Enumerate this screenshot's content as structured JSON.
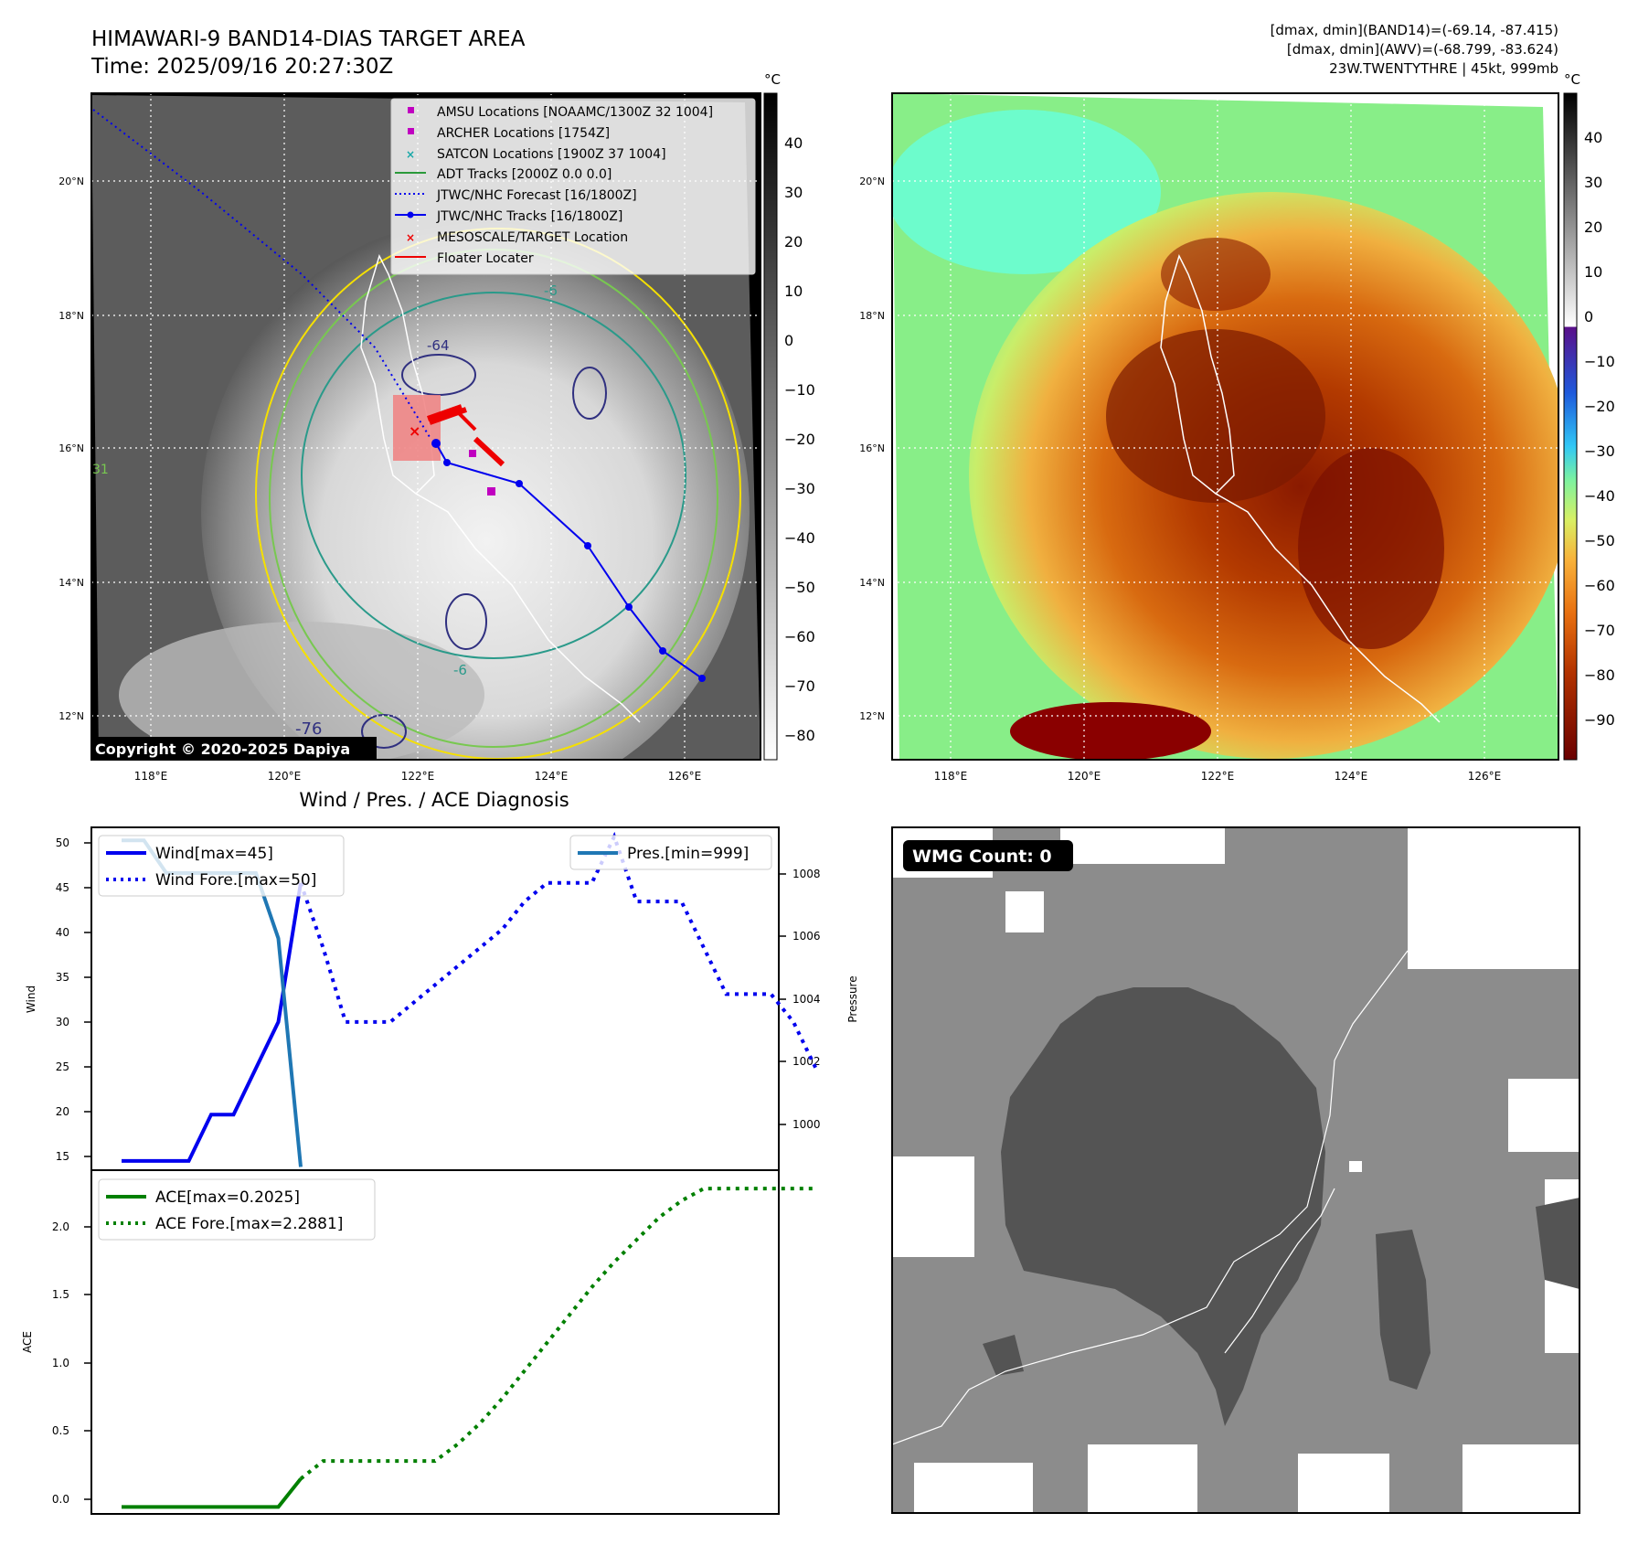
{
  "header": {
    "title_line1": "HIMAWARI-9 BAND14-DIAS TARGET AREA",
    "title_line2": "Time: 2025/09/16 20:27:30Z",
    "info_line1": "[dmax, dmin](BAND14)=(-69.14, -87.415)",
    "info_line2": "[dmax, dmin](AWV)=(-68.799, -83.624)",
    "info_line3": "23W.TWENTYTHRE | 45kt, 999mb"
  },
  "map": {
    "lon_ticks": [
      "118°E",
      "120°E",
      "122°E",
      "124°E",
      "126°E"
    ],
    "lat_ticks": [
      "20°N",
      "18°N",
      "16°N",
      "14°N",
      "12°N"
    ],
    "copyright": "Copyright © 2020-2025 Dapiya",
    "contour_labels": [
      "-6",
      "-64",
      "-6",
      "-76",
      "31"
    ],
    "legend": [
      {
        "label": "AMSU Locations [NOAAMC/1300Z 32 1004]",
        "marker": "square",
        "color": "#c000c0"
      },
      {
        "label": "ARCHER Locations [1754Z]",
        "marker": "square",
        "color": "#c000c0"
      },
      {
        "label": "SATCON Locations [1900Z 37 1004]",
        "marker": "x",
        "color": "#17a8a8"
      },
      {
        "label": "ADT Tracks [2000Z 0.0 0.0]",
        "marker": "line",
        "color": "#2a9a3a"
      },
      {
        "label": "JTWC/NHC Forecast [16/1800Z]",
        "marker": "dotted",
        "color": "#0000ee"
      },
      {
        "label": "JTWC/NHC Tracks [16/1800Z]",
        "marker": "line-dot",
        "color": "#0000ee"
      },
      {
        "label": "MESOSCALE/TARGET Location",
        "marker": "x",
        "color": "#ee0000"
      },
      {
        "label": "Floater Locater",
        "marker": "line",
        "color": "#ee0000"
      }
    ],
    "colorbar_gray": {
      "unit": "°C",
      "ticks": [
        "40",
        "30",
        "20",
        "10",
        "0",
        "−10",
        "−20",
        "−30",
        "−40",
        "−50",
        "−60",
        "−70",
        "−80"
      ]
    },
    "colorbar_color": {
      "unit": "°C",
      "ticks": [
        "40",
        "30",
        "20",
        "10",
        "0",
        "−10",
        "−20",
        "−30",
        "−40",
        "−50",
        "−60",
        "−70",
        "−80",
        "−90"
      ]
    }
  },
  "diag": {
    "title": "Wind / Pres. / ACE Diagnosis",
    "wind_ylabel": "Wind",
    "pres_ylabel": "Pressure",
    "ace_ylabel": "ACE",
    "wind_legend": [
      "Wind[max=45]",
      "Wind Fore.[max=50]"
    ],
    "pres_legend": [
      "Pres.[min=999]"
    ],
    "ace_legend": [
      "ACE[max=0.2025]",
      "ACE Fore.[max=2.2881]"
    ],
    "wind_ticks": [
      "50",
      "45",
      "40",
      "35",
      "30",
      "25",
      "20",
      "15"
    ],
    "pres_ticks": [
      "1008",
      "1006",
      "1004",
      "1002",
      "1000"
    ],
    "ace_ticks": [
      "2.0",
      "1.5",
      "1.0",
      "0.5",
      "0.0"
    ]
  },
  "wmg": {
    "label": "WMG Count: 0"
  },
  "colors": {
    "wind": "#0000ee",
    "pressure": "#1f77b4",
    "ace": "#008000",
    "track": "#0000ee",
    "floater": "#ee0000"
  },
  "chart_data": [
    {
      "type": "line",
      "panel": "wind-pressure",
      "series": [
        {
          "name": "Wind[max=45]",
          "axis": "wind",
          "values": [
            15,
            15,
            15,
            15,
            20,
            20,
            25,
            30,
            45
          ]
        },
        {
          "name": "Wind Fore.[max=50]",
          "axis": "wind",
          "values": [
            45,
            38,
            30,
            30,
            30,
            32,
            34,
            36,
            38,
            40,
            43,
            45,
            45,
            45,
            50,
            43,
            43,
            43,
            38,
            33,
            33,
            33,
            30,
            25
          ]
        },
        {
          "name": "Pres.[min=999]",
          "axis": "pressure",
          "values": [
            1009,
            1009,
            1008,
            1008,
            1008,
            1008,
            1008,
            1006,
            999
          ]
        }
      ],
      "ylim_wind": [
        14,
        51
      ],
      "ylim_pressure": [
        998.9,
        1009.4
      ]
    },
    {
      "type": "line",
      "panel": "ace",
      "series": [
        {
          "name": "ACE[max=0.2025]",
          "values": [
            0,
            0,
            0,
            0,
            0,
            0,
            0,
            0,
            0.2025
          ]
        },
        {
          "name": "ACE Fore.[max=2.2881]",
          "values": [
            0.2025,
            0.33,
            0.33,
            0.33,
            0.33,
            0.33,
            0.33,
            0.45,
            0.6,
            0.78,
            0.98,
            1.18,
            1.38,
            1.58,
            1.76,
            1.92,
            2.08,
            2.2,
            2.2881,
            2.2881,
            2.2881,
            2.2881,
            2.2881,
            2.2881
          ]
        }
      ],
      "ylim": [
        -0.05,
        2.42
      ]
    }
  ]
}
